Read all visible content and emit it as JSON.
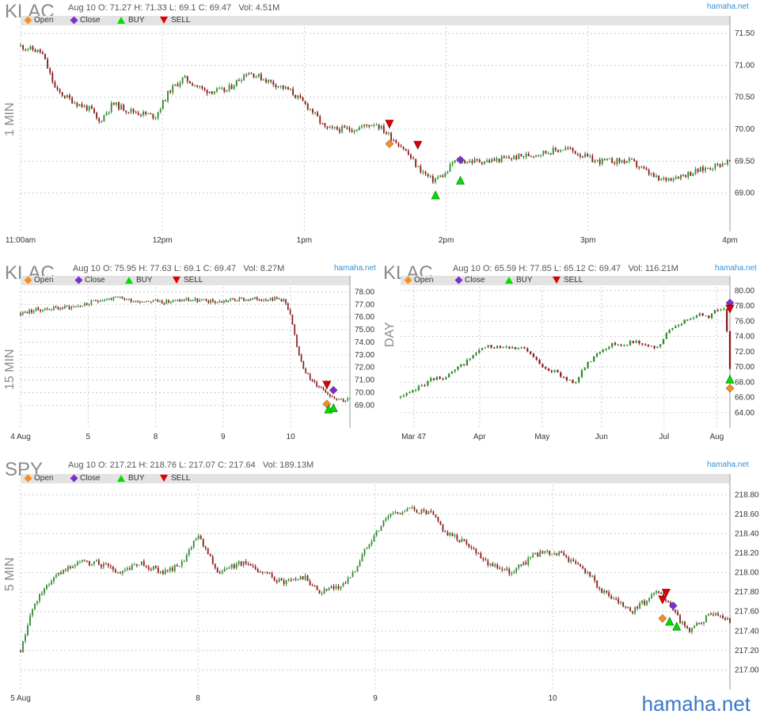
{
  "watermark": "hamaha.net",
  "legend": {
    "open": "Open",
    "close": "Close",
    "buy": "BUY",
    "sell": "SELL"
  },
  "colors": {
    "up": "#2e8b2e",
    "down": "#8b1a1a",
    "open_marker": "#ff8c1a",
    "close_marker": "#7b2fd0",
    "buy": "#00e000",
    "sell": "#e00000",
    "legend_bg": "#e3e3e3",
    "grid": "#cccccc"
  },
  "charts": [
    {
      "id": "p1",
      "symbol": "KLAC",
      "timeframe": "1 MIN",
      "ohlc": {
        "date": "Aug 10",
        "open": "O: 71.27",
        "high": "H: 71.33",
        "low": "L: 69.1",
        "close": "C: 69.47",
        "vol": "Vol: 4.51M"
      },
      "chart_data": {
        "type": "candlestick",
        "ylim": [
          68.4,
          71.6
        ],
        "yticks": [
          "71.50",
          "71.00",
          "70.50",
          "70.00",
          "69.50",
          "69.00"
        ],
        "yvals": [
          71.5,
          71.0,
          70.5,
          70.0,
          69.5,
          69.0
        ],
        "xticks": [
          "11:00am",
          "12pm",
          "1pm",
          "2pm",
          "3pm",
          "4pm"
        ],
        "xpos": [
          0.0,
          0.2,
          0.4,
          0.6,
          0.8,
          1.0
        ],
        "keypoints": [
          [
            0,
            71.3
          ],
          [
            0.03,
            71.2
          ],
          [
            0.05,
            70.6
          ],
          [
            0.08,
            70.4
          ],
          [
            0.1,
            70.3
          ],
          [
            0.11,
            70.1
          ],
          [
            0.13,
            70.4
          ],
          [
            0.15,
            70.3
          ],
          [
            0.19,
            70.2
          ],
          [
            0.21,
            70.6
          ],
          [
            0.23,
            70.8
          ],
          [
            0.26,
            70.6
          ],
          [
            0.29,
            70.6
          ],
          [
            0.32,
            70.9
          ],
          [
            0.34,
            70.8
          ],
          [
            0.38,
            70.6
          ],
          [
            0.41,
            70.3
          ],
          [
            0.43,
            70.0
          ],
          [
            0.47,
            70.0
          ],
          [
            0.5,
            70.1
          ],
          [
            0.52,
            69.9
          ],
          [
            0.54,
            69.7
          ],
          [
            0.56,
            69.4
          ],
          [
            0.58,
            69.2
          ],
          [
            0.6,
            69.3
          ],
          [
            0.61,
            69.5
          ],
          [
            0.66,
            69.5
          ],
          [
            0.72,
            69.6
          ],
          [
            0.77,
            69.7
          ],
          [
            0.81,
            69.5
          ],
          [
            0.86,
            69.5
          ],
          [
            0.9,
            69.2
          ],
          [
            0.94,
            69.3
          ],
          [
            0.97,
            69.4
          ],
          [
            1.0,
            69.5
          ]
        ],
        "markers": [
          {
            "type": "sell",
            "x": 0.52,
            "y": 70.08
          },
          {
            "type": "open",
            "x": 0.52,
            "y": 69.77
          },
          {
            "type": "sell",
            "x": 0.56,
            "y": 69.75
          },
          {
            "type": "buy",
            "x": 0.585,
            "y": 68.97
          },
          {
            "type": "close",
            "x": 0.62,
            "y": 69.52
          },
          {
            "type": "buy",
            "x": 0.62,
            "y": 69.2
          }
        ]
      }
    },
    {
      "id": "p2",
      "symbol": "KLAC",
      "timeframe": "15 MIN",
      "ohlc": {
        "date": "Aug 10",
        "open": "O: 75.95",
        "high": "H: 77.63",
        "low": "L: 69.1",
        "close": "C: 69.47",
        "vol": "Vol: 8.27M"
      },
      "chart_data": {
        "type": "candlestick",
        "ylim": [
          67.2,
          78.4
        ],
        "yticks": [
          "78.00",
          "77.00",
          "76.00",
          "75.00",
          "74.00",
          "73.00",
          "72.00",
          "71.00",
          "70.00",
          "69.00"
        ],
        "yvals": [
          78,
          77,
          76,
          75,
          74,
          73,
          72,
          71,
          70,
          69
        ],
        "xticks": [
          "4 Aug",
          "5",
          "8",
          "9",
          "10"
        ],
        "xpos": [
          0.0,
          0.205,
          0.41,
          0.615,
          0.82
        ],
        "keypoints": [
          [
            0,
            76.3
          ],
          [
            0.05,
            76.6
          ],
          [
            0.1,
            76.7
          ],
          [
            0.15,
            76.8
          ],
          [
            0.2,
            77.0
          ],
          [
            0.24,
            77.4
          ],
          [
            0.3,
            77.5
          ],
          [
            0.35,
            77.3
          ],
          [
            0.4,
            77.3
          ],
          [
            0.45,
            77.2
          ],
          [
            0.5,
            77.4
          ],
          [
            0.55,
            77.3
          ],
          [
            0.6,
            77.2
          ],
          [
            0.65,
            77.4
          ],
          [
            0.7,
            77.4
          ],
          [
            0.75,
            77.5
          ],
          [
            0.8,
            77.4
          ],
          [
            0.82,
            76.0
          ],
          [
            0.84,
            73.5
          ],
          [
            0.86,
            72.0
          ],
          [
            0.88,
            71.0
          ],
          [
            0.9,
            70.6
          ],
          [
            0.92,
            70.3
          ],
          [
            0.94,
            69.8
          ],
          [
            0.96,
            69.6
          ],
          [
            0.98,
            69.4
          ],
          [
            1.0,
            69.5
          ]
        ],
        "markers": [
          {
            "type": "sell",
            "x": 0.93,
            "y": 70.6
          },
          {
            "type": "close",
            "x": 0.95,
            "y": 70.2
          },
          {
            "type": "open",
            "x": 0.93,
            "y": 69.1
          },
          {
            "type": "buy",
            "x": 0.935,
            "y": 68.7
          },
          {
            "type": "buy",
            "x": 0.95,
            "y": 68.8
          }
        ]
      }
    },
    {
      "id": "p3",
      "symbol": "KLAC",
      "timeframe": "DAY",
      "ohlc": {
        "date": "Aug 10",
        "open": "O: 65.59",
        "high": "H: 77.85",
        "low": "L: 65.12",
        "close": "C: 69.47",
        "vol": "Vol: 116.21M"
      },
      "chart_data": {
        "type": "candlestick",
        "ylim": [
          62.0,
          80.5
        ],
        "yticks": [
          "80.00",
          "78.00",
          "76.00",
          "74.00",
          "72.00",
          "70.00",
          "68.00",
          "66.00",
          "64.00"
        ],
        "yvals": [
          80,
          78,
          76,
          74,
          72,
          70,
          68,
          66,
          64
        ],
        "xticks": [
          "Mar 47",
          "Apr",
          "May",
          "Jun",
          "Jul",
          "Aug"
        ],
        "xpos": [
          0.04,
          0.24,
          0.43,
          0.61,
          0.8,
          0.96
        ],
        "keypoints": [
          [
            0,
            66
          ],
          [
            0.03,
            66.5
          ],
          [
            0.06,
            67.5
          ],
          [
            0.1,
            68.5
          ],
          [
            0.14,
            68.7
          ],
          [
            0.18,
            70
          ],
          [
            0.22,
            71.5
          ],
          [
            0.25,
            72.5
          ],
          [
            0.3,
            72.8
          ],
          [
            0.35,
            72.6
          ],
          [
            0.38,
            72.2
          ],
          [
            0.42,
            70.5
          ],
          [
            0.46,
            69.5
          ],
          [
            0.5,
            68.5
          ],
          [
            0.53,
            68
          ],
          [
            0.56,
            70
          ],
          [
            0.6,
            72
          ],
          [
            0.64,
            73
          ],
          [
            0.68,
            73
          ],
          [
            0.72,
            73.5
          ],
          [
            0.75,
            72.5
          ],
          [
            0.78,
            72.5
          ],
          [
            0.82,
            75
          ],
          [
            0.86,
            76
          ],
          [
            0.9,
            77
          ],
          [
            0.93,
            76.5
          ],
          [
            0.96,
            77.5
          ],
          [
            0.985,
            77.8
          ],
          [
            1.0,
            69.5
          ]
        ],
        "markers": [
          {
            "type": "close",
            "x": 1.0,
            "y": 78.4
          },
          {
            "type": "sell",
            "x": 1.0,
            "y": 77.6
          },
          {
            "type": "buy",
            "x": 1.0,
            "y": 68.4
          },
          {
            "type": "open",
            "x": 1.0,
            "y": 67.2
          }
        ]
      }
    },
    {
      "id": "p4",
      "symbol": "SPY",
      "timeframe": "5 MIN",
      "ohlc": {
        "date": "Aug 10",
        "open": "O: 217.21",
        "high": "H: 218.76",
        "low": "L: 217.07",
        "close": "C: 217.64",
        "vol": "Vol: 189.13M"
      },
      "chart_data": {
        "type": "candlestick",
        "ylim": [
          216.8,
          218.9
        ],
        "yticks": [
          "218.80",
          "218.60",
          "218.40",
          "218.20",
          "218.00",
          "217.80",
          "217.60",
          "217.40",
          "217.20",
          "217.00"
        ],
        "yvals": [
          218.8,
          218.6,
          218.4,
          218.2,
          218.0,
          217.8,
          217.6,
          217.4,
          217.2,
          217.0
        ],
        "xticks": [
          "5 Aug",
          "8",
          "9",
          "10"
        ],
        "xpos": [
          0.0,
          0.25,
          0.5,
          0.75
        ],
        "keypoints": [
          [
            0,
            217.2
          ],
          [
            0.02,
            217.7
          ],
          [
            0.04,
            217.9
          ],
          [
            0.06,
            218.0
          ],
          [
            0.08,
            218.1
          ],
          [
            0.11,
            218.1
          ],
          [
            0.14,
            218.0
          ],
          [
            0.17,
            218.1
          ],
          [
            0.2,
            218.0
          ],
          [
            0.23,
            218.1
          ],
          [
            0.25,
            218.4
          ],
          [
            0.28,
            218.0
          ],
          [
            0.31,
            218.1
          ],
          [
            0.34,
            218.0
          ],
          [
            0.37,
            217.9
          ],
          [
            0.4,
            217.95
          ],
          [
            0.42,
            217.8
          ],
          [
            0.45,
            217.85
          ],
          [
            0.47,
            218.0
          ],
          [
            0.49,
            218.3
          ],
          [
            0.52,
            218.6
          ],
          [
            0.55,
            218.65
          ],
          [
            0.58,
            218.6
          ],
          [
            0.6,
            218.4
          ],
          [
            0.63,
            218.3
          ],
          [
            0.66,
            218.1
          ],
          [
            0.69,
            218.0
          ],
          [
            0.71,
            218.1
          ],
          [
            0.73,
            218.2
          ],
          [
            0.76,
            218.2
          ],
          [
            0.78,
            218.1
          ],
          [
            0.8,
            218.0
          ],
          [
            0.82,
            217.8
          ],
          [
            0.84,
            217.7
          ],
          [
            0.86,
            217.6
          ],
          [
            0.88,
            217.7
          ],
          [
            0.9,
            217.8
          ],
          [
            0.92,
            217.6
          ],
          [
            0.94,
            217.4
          ],
          [
            0.96,
            217.5
          ],
          [
            0.98,
            217.6
          ],
          [
            1.0,
            217.5
          ]
        ],
        "markers": [
          {
            "type": "sell",
            "x": 0.91,
            "y": 217.79
          },
          {
            "type": "sell",
            "x": 0.905,
            "y": 217.72
          },
          {
            "type": "close",
            "x": 0.92,
            "y": 217.66
          },
          {
            "type": "open",
            "x": 0.905,
            "y": 217.53
          },
          {
            "type": "buy",
            "x": 0.915,
            "y": 217.5
          },
          {
            "type": "buy",
            "x": 0.925,
            "y": 217.45
          }
        ]
      }
    }
  ]
}
